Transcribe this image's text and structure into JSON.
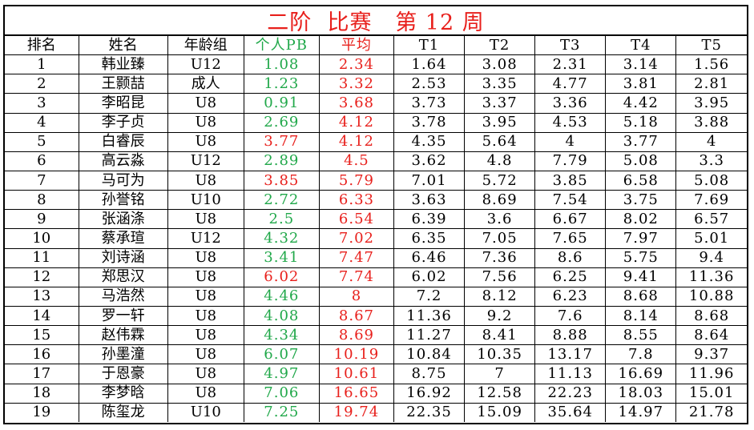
{
  "title": "二阶  比赛   第 12 周",
  "colors": {
    "title": "#e8201c",
    "green": "#21a84a",
    "red": "#e8201c",
    "text": "#000000"
  },
  "headers": [
    "排名",
    "姓名",
    "年龄组",
    "个人PB",
    "平均",
    "T1",
    "T2",
    "T3",
    "T4",
    "T5"
  ],
  "header_colors": [
    "black",
    "black",
    "black",
    "green",
    "red",
    "black",
    "black",
    "black",
    "black",
    "black"
  ],
  "rows": [
    {
      "rank": "1",
      "name": "韩业臻",
      "age": "U12",
      "pb": "1.08",
      "pb_color": "green",
      "avg": "2.34",
      "times": [
        "1.64",
        "3.08",
        "2.31",
        "3.14",
        "1.56"
      ]
    },
    {
      "rank": "2",
      "name": "王颢喆",
      "age": "成人",
      "pb": "1.23",
      "pb_color": "green",
      "avg": "3.32",
      "times": [
        "2.53",
        "3.35",
        "4.77",
        "3.81",
        "2.81"
      ]
    },
    {
      "rank": "3",
      "name": "李昭昆",
      "age": "U8",
      "pb": "0.91",
      "pb_color": "green",
      "avg": "3.68",
      "times": [
        "3.73",
        "3.37",
        "3.36",
        "4.42",
        "3.95"
      ]
    },
    {
      "rank": "4",
      "name": "李子贞",
      "age": "U8",
      "pb": "2.69",
      "pb_color": "green",
      "avg": "4.12",
      "times": [
        "3.78",
        "3.95",
        "4.53",
        "5.18",
        "3.88"
      ]
    },
    {
      "rank": "5",
      "name": "白睿辰",
      "age": "U8",
      "pb": "3.77",
      "pb_color": "red",
      "avg": "4.12",
      "times": [
        "4.35",
        "5.64",
        "4",
        "3.77",
        "4"
      ]
    },
    {
      "rank": "6",
      "name": "高云淼",
      "age": "U12",
      "pb": "2.89",
      "pb_color": "green",
      "avg": "4.5",
      "times": [
        "3.62",
        "4.8",
        "7.79",
        "5.08",
        "3.3"
      ]
    },
    {
      "rank": "7",
      "name": "马可为",
      "age": "U8",
      "pb": "3.85",
      "pb_color": "red",
      "avg": "5.79",
      "times": [
        "7.01",
        "5.72",
        "3.85",
        "6.58",
        "5.08"
      ]
    },
    {
      "rank": "8",
      "name": "孙誉铭",
      "age": "U10",
      "pb": "2.72",
      "pb_color": "green",
      "avg": "6.33",
      "times": [
        "3.63",
        "8.69",
        "7.54",
        "3.75",
        "7.69"
      ]
    },
    {
      "rank": "9",
      "name": "张涵涤",
      "age": "U8",
      "pb": "2.5",
      "pb_color": "green",
      "avg": "6.54",
      "times": [
        "6.39",
        "3.6",
        "6.67",
        "8.02",
        "6.57"
      ]
    },
    {
      "rank": "10",
      "name": "蔡承瑄",
      "age": "U12",
      "pb": "4.32",
      "pb_color": "green",
      "avg": "7.02",
      "times": [
        "6.35",
        "7.05",
        "7.65",
        "7.97",
        "5.01"
      ]
    },
    {
      "rank": "11",
      "name": "刘诗涵",
      "age": "U8",
      "pb": "3.41",
      "pb_color": "green",
      "avg": "7.47",
      "times": [
        "6.46",
        "7.36",
        "8.6",
        "5.75",
        "9.4"
      ]
    },
    {
      "rank": "12",
      "name": "郑思汉",
      "age": "U8",
      "pb": "6.02",
      "pb_color": "red",
      "avg": "7.74",
      "times": [
        "6.02",
        "7.56",
        "6.25",
        "9.41",
        "11.36"
      ]
    },
    {
      "rank": "13",
      "name": "马浩然",
      "age": "U8",
      "pb": "4.46",
      "pb_color": "green",
      "avg": "8",
      "times": [
        "7.2",
        "8.12",
        "6.23",
        "8.68",
        "10.88"
      ]
    },
    {
      "rank": "14",
      "name": "罗一轩",
      "age": "U8",
      "pb": "4.08",
      "pb_color": "green",
      "avg": "8.67",
      "times": [
        "11.36",
        "9.2",
        "7.6",
        "8.14",
        "8.68"
      ]
    },
    {
      "rank": "15",
      "name": "赵伟霖",
      "age": "U8",
      "pb": "4.34",
      "pb_color": "green",
      "avg": "8.69",
      "times": [
        "11.27",
        "8.41",
        "8.88",
        "8.55",
        "8.64"
      ]
    },
    {
      "rank": "16",
      "name": "孙墨潼",
      "age": "U8",
      "pb": "6.07",
      "pb_color": "green",
      "avg": "10.19",
      "times": [
        "10.84",
        "10.35",
        "13.17",
        "7.8",
        "9.37"
      ]
    },
    {
      "rank": "17",
      "name": "于恩豪",
      "age": "U8",
      "pb": "4.97",
      "pb_color": "green",
      "avg": "10.61",
      "times": [
        "8.75",
        "7",
        "11.13",
        "16.69",
        "11.96"
      ]
    },
    {
      "rank": "18",
      "name": "李梦晗",
      "age": "U8",
      "pb": "7.06",
      "pb_color": "green",
      "avg": "16.65",
      "times": [
        "16.92",
        "12.58",
        "22.23",
        "18.03",
        "15.01"
      ]
    },
    {
      "rank": "19",
      "name": "陈玺龙",
      "age": "U10",
      "pb": "7.25",
      "pb_color": "green",
      "avg": "19.74",
      "times": [
        "22.35",
        "15.09",
        "35.64",
        "14.97",
        "21.78"
      ]
    }
  ]
}
